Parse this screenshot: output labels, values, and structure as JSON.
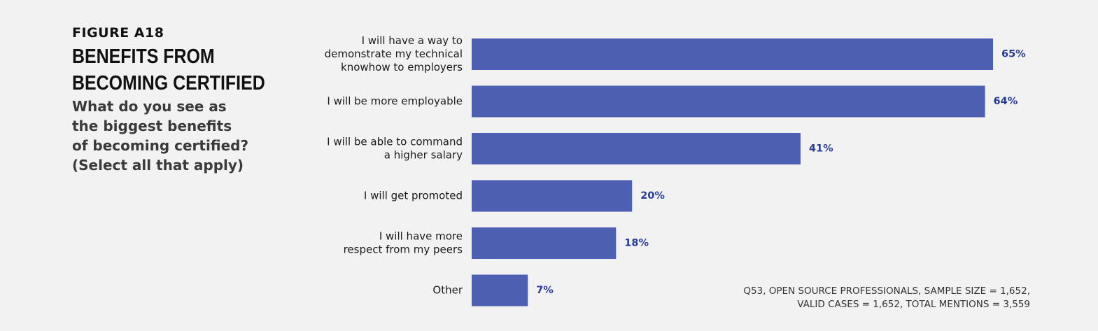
{
  "figure_label": "FIGURE A18",
  "title": "BENEFITS FROM\nBECOMING CERTIFIED",
  "subtitle": "What do you see as\nthe biggest benefits\nof becoming certified?\n(Select all that apply)",
  "footnote": {
    "line1": "Q53, OPEN SOURCE PROFESSIONALS, SAMPLE SIZE = 1,652,",
    "line2": "VALID CASES = 1,652, TOTAL MENTIONS = 3,559"
  },
  "colors": {
    "bar": "#4d5fb0",
    "value_text": "#2a3a9a"
  },
  "chart_data": {
    "type": "bar",
    "orientation": "horizontal",
    "categories": [
      "I will have a way to\ndemonstrate my technical\nknowhow to employers",
      "I will be more employable",
      "I will be able to command\na higher salary",
      "I will get promoted",
      "I will have more\nrespect from my peers",
      "Other"
    ],
    "values": [
      65,
      64,
      41,
      20,
      18,
      7
    ],
    "value_labels": [
      "65%",
      "64%",
      "41%",
      "20%",
      "18%",
      "7%"
    ],
    "unit": "%",
    "xlim": [
      0,
      65
    ],
    "grid": false,
    "legend": false
  }
}
